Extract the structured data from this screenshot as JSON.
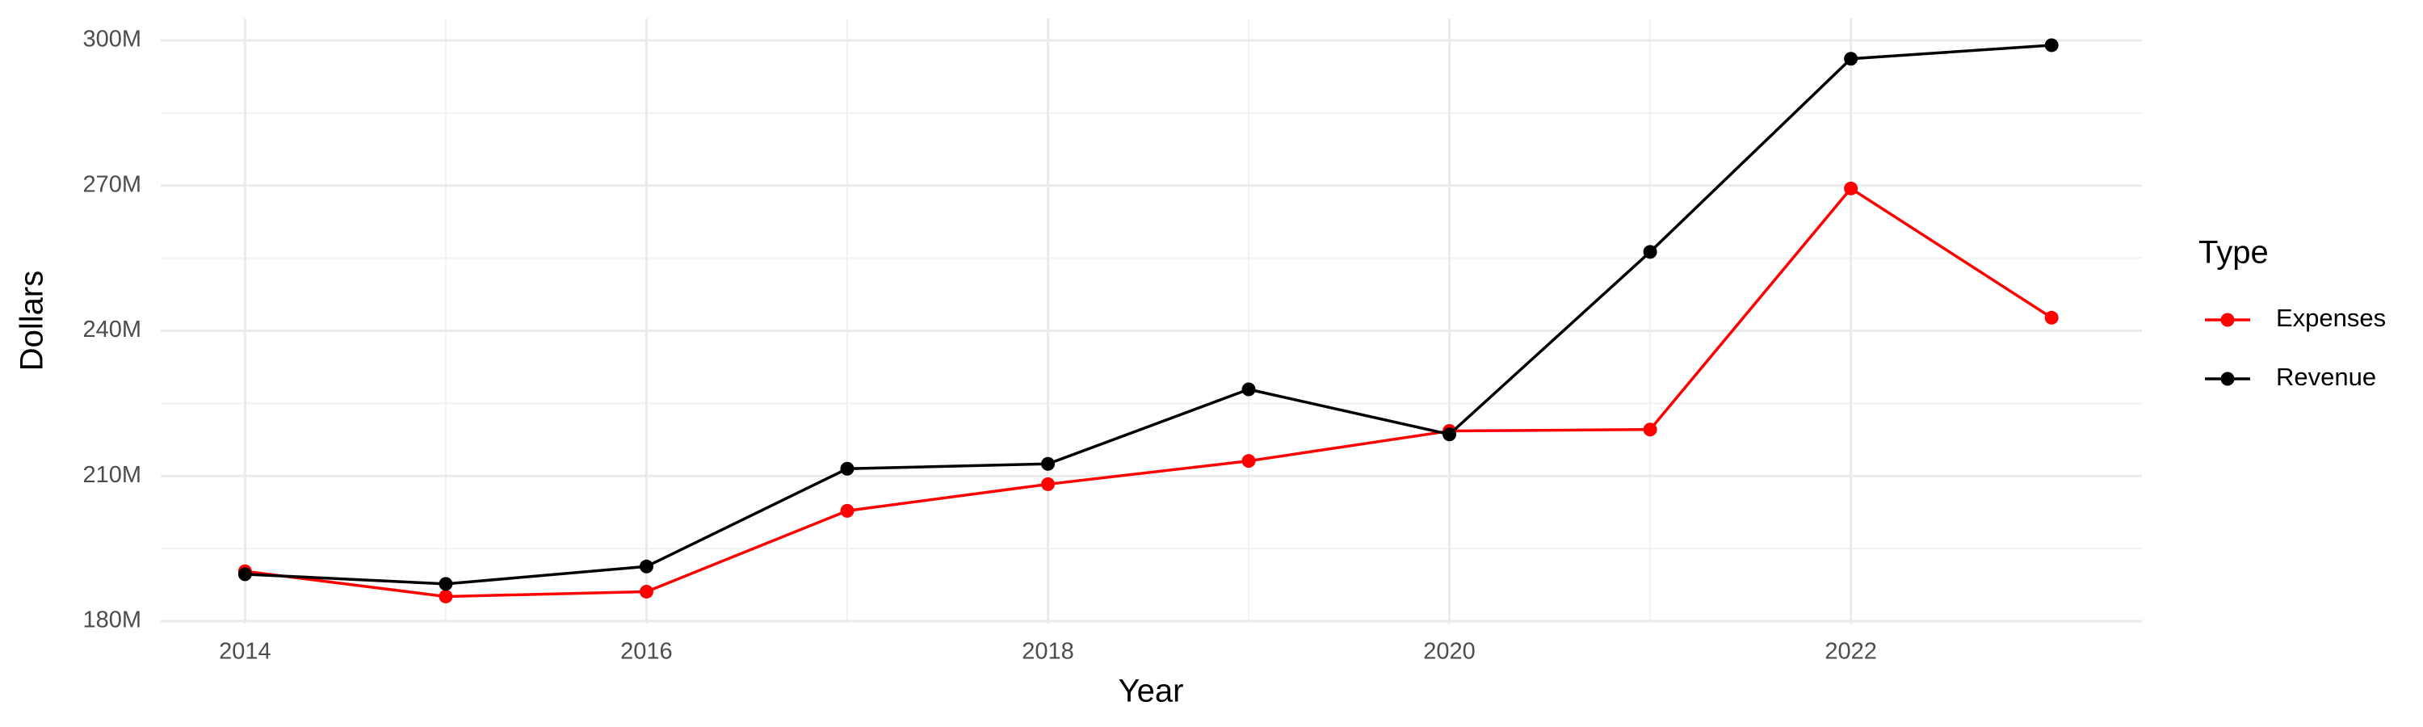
{
  "chart_data": {
    "type": "line",
    "x_label": "Year",
    "y_label": "Dollars",
    "legend_title": "Type",
    "x": [
      2014,
      2015,
      2016,
      2017,
      2018,
      2019,
      2020,
      2021,
      2022,
      2023
    ],
    "series": [
      {
        "name": "Expenses",
        "color": "#ff0000",
        "values": [
          190300000,
          185100000,
          186100000,
          202800000,
          208300000,
          213100000,
          219300000,
          219600000,
          269400000,
          242700000
        ]
      },
      {
        "name": "Revenue",
        "color": "#000000",
        "values": [
          189700000,
          187700000,
          191300000,
          211500000,
          212500000,
          227900000,
          218600000,
          256300000,
          296200000,
          299000000
        ]
      }
    ],
    "xlim": [
      2013.58,
      2023.45
    ],
    "xticks": [
      2014,
      2016,
      2018,
      2020,
      2022
    ],
    "ylim": [
      179500000,
      304500000
    ],
    "yticks": [
      {
        "value": 180000000,
        "label": "180M"
      },
      {
        "value": 210000000,
        "label": "210M"
      },
      {
        "value": 240000000,
        "label": "240M"
      },
      {
        "value": 270000000,
        "label": "270M"
      },
      {
        "value": 300000000,
        "label": "300M"
      }
    ],
    "grid": true,
    "legend": "right"
  }
}
